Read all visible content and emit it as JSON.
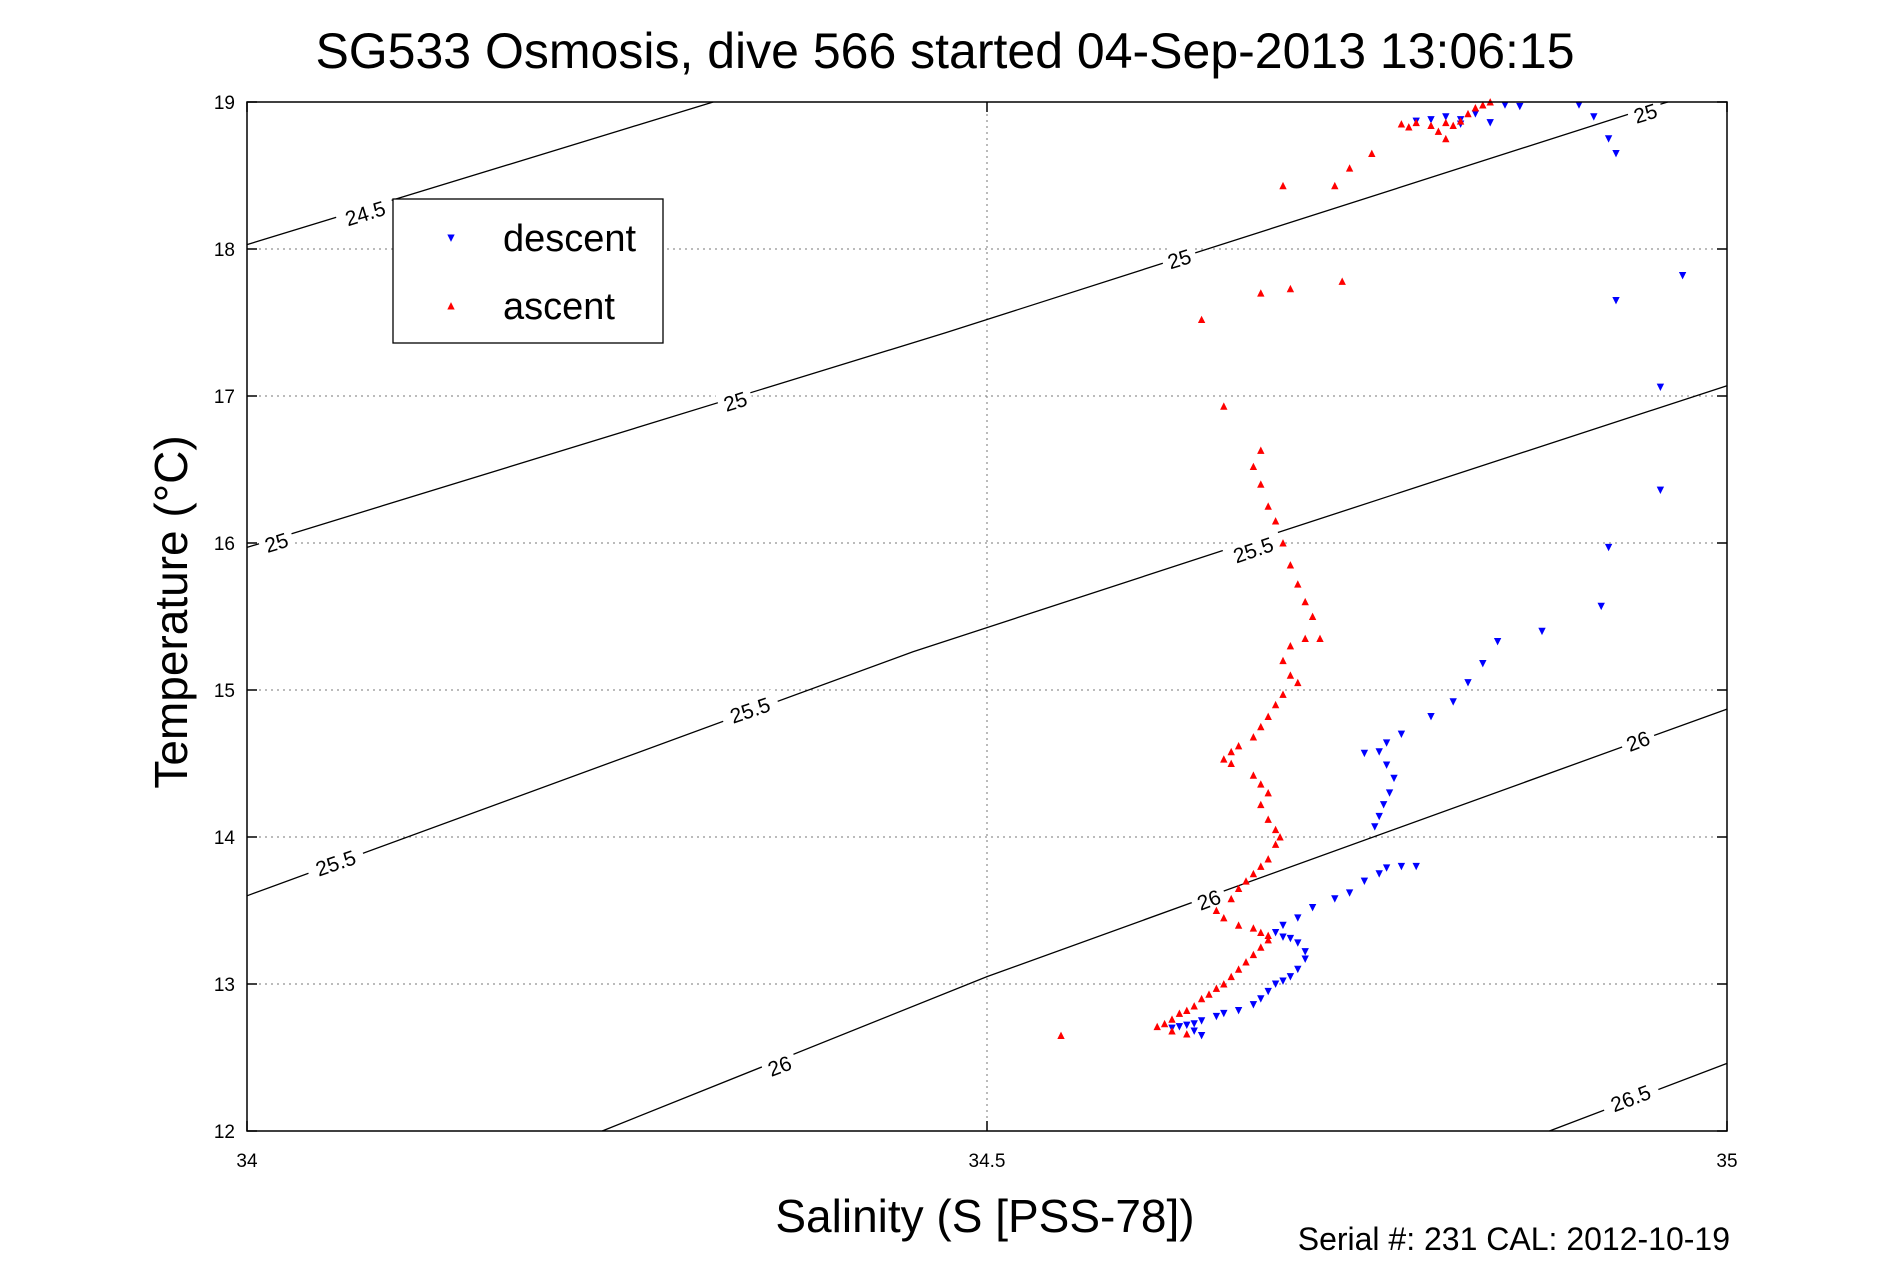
{
  "chart_data": {
    "type": "scatter",
    "title": "SG533 Osmosis, dive 566 started 04-Sep-2013 13:06:15",
    "xlabel": "Salinity (S [PSS-78])",
    "ylabel": "Temperature (°C)",
    "xlim": [
      34,
      35
    ],
    "ylim": [
      12,
      19
    ],
    "x_ticks": [
      "34",
      "34.5",
      "35"
    ],
    "y_ticks": [
      "12",
      "13",
      "14",
      "15",
      "16",
      "17",
      "18",
      "19"
    ],
    "grid": true,
    "legend_position": "top-left",
    "footer": "Serial #: 231  CAL: 2012-10-19",
    "density_contours": [
      {
        "label": "24.5",
        "points": [
          [
            34.0,
            18.03
          ],
          [
            34.315,
            19.0
          ]
        ],
        "label_at": [
          [
            34.08,
            18.24
          ]
        ]
      },
      {
        "label": "25",
        "points": [
          [
            34.0,
            15.97
          ],
          [
            34.472,
            17.43
          ],
          [
            34.95,
            18.97
          ],
          [
            34.96,
            19.0
          ]
        ],
        "label_at": [
          [
            34.02,
            16.0
          ],
          [
            34.33,
            16.96
          ],
          [
            34.63,
            17.93
          ],
          [
            34.945,
            18.92
          ]
        ]
      },
      {
        "label": "25.5",
        "points": [
          [
            34.0,
            13.6
          ],
          [
            34.45,
            15.26
          ],
          [
            35.0,
            17.07
          ]
        ],
        "label_at": [
          [
            34.06,
            13.82
          ],
          [
            34.34,
            14.86
          ],
          [
            34.68,
            15.95
          ]
        ]
      },
      {
        "label": "26",
        "points": [
          [
            34.24,
            12.0
          ],
          [
            34.5,
            13.05
          ],
          [
            35.0,
            14.87
          ]
        ],
        "label_at": [
          [
            34.36,
            12.44
          ],
          [
            34.65,
            13.57
          ],
          [
            34.94,
            14.65
          ]
        ]
      },
      {
        "label": "26.5",
        "points": [
          [
            34.88,
            12.0
          ],
          [
            35.0,
            12.46
          ]
        ],
        "label_at": [
          [
            34.935,
            12.22
          ]
        ]
      }
    ],
    "series": [
      {
        "name": "descent",
        "color": "#0000ff",
        "marker": "triangle-down",
        "points": [
          [
            34.8,
            18.88
          ],
          [
            34.81,
            18.9
          ],
          [
            34.82,
            18.88
          ],
          [
            34.83,
            18.92
          ],
          [
            34.84,
            18.86
          ],
          [
            34.85,
            18.98
          ],
          [
            34.86,
            18.97
          ],
          [
            34.82,
            18.85
          ],
          [
            34.79,
            18.87
          ],
          [
            34.9,
            18.98
          ],
          [
            34.91,
            18.9
          ],
          [
            34.92,
            18.75
          ],
          [
            34.925,
            18.65
          ],
          [
            34.925,
            17.65
          ],
          [
            34.97,
            17.82
          ],
          [
            34.955,
            17.06
          ],
          [
            34.955,
            16.36
          ],
          [
            34.92,
            15.97
          ],
          [
            34.915,
            15.57
          ],
          [
            34.875,
            15.4
          ],
          [
            34.845,
            15.33
          ],
          [
            34.835,
            15.18
          ],
          [
            34.825,
            15.05
          ],
          [
            34.815,
            14.92
          ],
          [
            34.8,
            14.82
          ],
          [
            34.78,
            14.7
          ],
          [
            34.77,
            14.64
          ],
          [
            34.765,
            14.58
          ],
          [
            34.755,
            14.57
          ],
          [
            34.77,
            14.49
          ],
          [
            34.775,
            14.4
          ],
          [
            34.772,
            14.3
          ],
          [
            34.768,
            14.22
          ],
          [
            34.765,
            14.14
          ],
          [
            34.762,
            14.07
          ],
          [
            34.79,
            13.8
          ],
          [
            34.78,
            13.8
          ],
          [
            34.77,
            13.79
          ],
          [
            34.765,
            13.75
          ],
          [
            34.755,
            13.7
          ],
          [
            34.745,
            13.62
          ],
          [
            34.735,
            13.58
          ],
          [
            34.72,
            13.52
          ],
          [
            34.71,
            13.45
          ],
          [
            34.7,
            13.4
          ],
          [
            34.695,
            13.35
          ],
          [
            34.7,
            13.32
          ],
          [
            34.705,
            13.31
          ],
          [
            34.71,
            13.28
          ],
          [
            34.715,
            13.22
          ],
          [
            34.715,
            13.17
          ],
          [
            34.71,
            13.1
          ],
          [
            34.705,
            13.05
          ],
          [
            34.7,
            13.02
          ],
          [
            34.695,
            13.0
          ],
          [
            34.69,
            12.95
          ],
          [
            34.685,
            12.9
          ],
          [
            34.68,
            12.86
          ],
          [
            34.67,
            12.82
          ],
          [
            34.66,
            12.8
          ],
          [
            34.655,
            12.78
          ],
          [
            34.645,
            12.75
          ],
          [
            34.64,
            12.73
          ],
          [
            34.635,
            12.72
          ],
          [
            34.63,
            12.71
          ],
          [
            34.625,
            12.7
          ],
          [
            34.64,
            12.68
          ],
          [
            34.645,
            12.65
          ]
        ]
      },
      {
        "name": "ascent",
        "color": "#ff0000",
        "marker": "triangle-up",
        "points": [
          [
            34.78,
            18.85
          ],
          [
            34.785,
            18.83
          ],
          [
            34.79,
            18.86
          ],
          [
            34.8,
            18.84
          ],
          [
            34.805,
            18.8
          ],
          [
            34.81,
            18.86
          ],
          [
            34.815,
            18.84
          ],
          [
            34.82,
            18.87
          ],
          [
            34.825,
            18.92
          ],
          [
            34.83,
            18.96
          ],
          [
            34.835,
            18.98
          ],
          [
            34.84,
            19.0
          ],
          [
            34.81,
            18.75
          ],
          [
            34.76,
            18.65
          ],
          [
            34.745,
            18.55
          ],
          [
            34.735,
            18.43
          ],
          [
            34.7,
            18.43
          ],
          [
            34.645,
            17.52
          ],
          [
            34.685,
            17.7
          ],
          [
            34.705,
            17.73
          ],
          [
            34.74,
            17.78
          ],
          [
            34.66,
            16.93
          ],
          [
            34.685,
            16.63
          ],
          [
            34.68,
            16.52
          ],
          [
            34.685,
            16.4
          ],
          [
            34.69,
            16.25
          ],
          [
            34.695,
            16.15
          ],
          [
            34.7,
            16.0
          ],
          [
            34.705,
            15.85
          ],
          [
            34.71,
            15.72
          ],
          [
            34.715,
            15.6
          ],
          [
            34.72,
            15.5
          ],
          [
            34.725,
            15.35
          ],
          [
            34.715,
            15.35
          ],
          [
            34.705,
            15.3
          ],
          [
            34.7,
            15.2
          ],
          [
            34.705,
            15.1
          ],
          [
            34.71,
            15.05
          ],
          [
            34.7,
            14.97
          ],
          [
            34.695,
            14.9
          ],
          [
            34.69,
            14.82
          ],
          [
            34.685,
            14.75
          ],
          [
            34.68,
            14.68
          ],
          [
            34.67,
            14.62
          ],
          [
            34.665,
            14.58
          ],
          [
            34.66,
            14.53
          ],
          [
            34.665,
            14.5
          ],
          [
            34.68,
            14.42
          ],
          [
            34.685,
            14.36
          ],
          [
            34.69,
            14.3
          ],
          [
            34.685,
            14.22
          ],
          [
            34.69,
            14.12
          ],
          [
            34.695,
            14.05
          ],
          [
            34.698,
            14.0
          ],
          [
            34.695,
            13.95
          ],
          [
            34.69,
            13.85
          ],
          [
            34.685,
            13.8
          ],
          [
            34.68,
            13.75
          ],
          [
            34.675,
            13.7
          ],
          [
            34.67,
            13.65
          ],
          [
            34.665,
            13.58
          ],
          [
            34.655,
            13.5
          ],
          [
            34.66,
            13.45
          ],
          [
            34.67,
            13.4
          ],
          [
            34.68,
            13.38
          ],
          [
            34.685,
            13.35
          ],
          [
            34.69,
            13.33
          ],
          [
            34.69,
            13.3
          ],
          [
            34.685,
            13.25
          ],
          [
            34.68,
            13.2
          ],
          [
            34.675,
            13.15
          ],
          [
            34.67,
            13.1
          ],
          [
            34.665,
            13.05
          ],
          [
            34.66,
            13.0
          ],
          [
            34.655,
            12.97
          ],
          [
            34.65,
            12.93
          ],
          [
            34.645,
            12.9
          ],
          [
            34.64,
            12.85
          ],
          [
            34.635,
            12.82
          ],
          [
            34.63,
            12.8
          ],
          [
            34.625,
            12.76
          ],
          [
            34.62,
            12.73
          ],
          [
            34.615,
            12.71
          ],
          [
            34.625,
            12.68
          ],
          [
            34.635,
            12.66
          ],
          [
            34.55,
            12.65
          ]
        ]
      }
    ]
  }
}
